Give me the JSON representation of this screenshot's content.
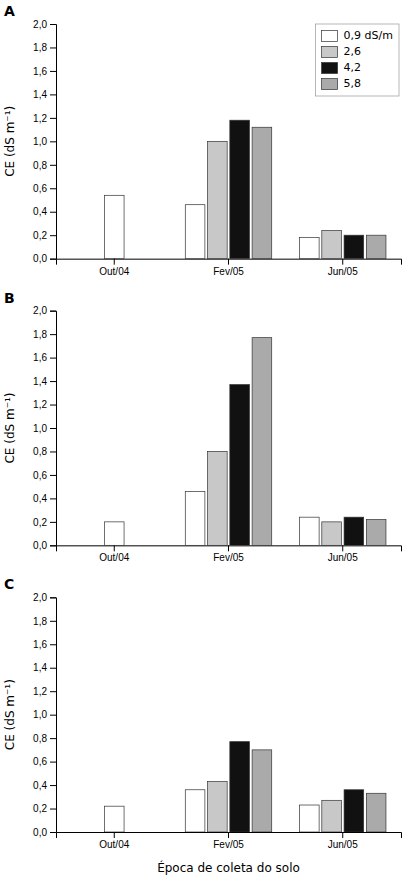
{
  "chart_data": [
    {
      "type": "bar",
      "title": "A",
      "ylabel": "CE (dS m⁻¹)",
      "categories": [
        "Out/04",
        "Fev/05",
        "Jun/05"
      ],
      "series": [
        {
          "name": "0,9 dS/m",
          "color": "#ffffff",
          "values": [
            0.54,
            0.46,
            0.18
          ]
        },
        {
          "name": "2,6",
          "color": "#c8c8c8",
          "values": [
            null,
            1.0,
            0.24
          ]
        },
        {
          "name": "4,2",
          "color": "#111111",
          "values": [
            null,
            1.18,
            0.2
          ]
        },
        {
          "name": "5,8",
          "color": "#aaaaaa",
          "values": [
            null,
            1.12,
            0.2
          ]
        }
      ],
      "ylim": [
        0.0,
        2.0
      ],
      "yticks": [
        {
          "value": 0.0,
          "label": "0,0"
        },
        {
          "value": 0.2,
          "label": "0,2"
        },
        {
          "value": 0.4,
          "label": "0,4"
        },
        {
          "value": 0.6,
          "label": "0,6"
        },
        {
          "value": 0.8,
          "label": "0,8"
        },
        {
          "value": 1.0,
          "label": "1,0"
        },
        {
          "value": 1.2,
          "label": "1,2"
        },
        {
          "value": 1.4,
          "label": "1,4"
        },
        {
          "value": 1.6,
          "label": "1,6"
        },
        {
          "value": 1.8,
          "label": "1,8"
        },
        {
          "value": 2.0,
          "label": "2,0"
        }
      ],
      "legend": "upper right"
    },
    {
      "type": "bar",
      "title": "B",
      "ylabel": "CE (dS m⁻¹)",
      "categories": [
        "Out/04",
        "Fev/05",
        "Jun/05"
      ],
      "series": [
        {
          "color": "#ffffff",
          "values": [
            0.2,
            0.46,
            0.24
          ]
        },
        {
          "color": "#c8c8c8",
          "values": [
            null,
            0.8,
            0.2
          ]
        },
        {
          "color": "#111111",
          "values": [
            null,
            1.37,
            0.24
          ]
        },
        {
          "color": "#aaaaaa",
          "values": [
            null,
            1.77,
            0.22
          ]
        }
      ],
      "ylim": [
        0.0,
        2.0
      ],
      "yticks": [
        {
          "value": 0.0,
          "label": "0,0"
        },
        {
          "value": 0.2,
          "label": "0,2"
        },
        {
          "value": 0.4,
          "label": "0,4"
        },
        {
          "value": 0.6,
          "label": "0,6"
        },
        {
          "value": 0.8,
          "label": "0,8"
        },
        {
          "value": 1.0,
          "label": "1,0"
        },
        {
          "value": 1.2,
          "label": "1,2"
        },
        {
          "value": 1.4,
          "label": "1,4"
        },
        {
          "value": 1.6,
          "label": "1,6"
        },
        {
          "value": 1.8,
          "label": "1,8"
        },
        {
          "value": 2.0,
          "label": "2,0"
        }
      ]
    },
    {
      "type": "bar",
      "title": "C",
      "ylabel": "CE (dS m⁻¹)",
      "xlabel": "Época de coleta do solo",
      "categories": [
        "Out/04",
        "Fev/05",
        "Jun/05"
      ],
      "series": [
        {
          "color": "#ffffff",
          "values": [
            0.22,
            0.36,
            0.23
          ]
        },
        {
          "color": "#c8c8c8",
          "values": [
            null,
            0.43,
            0.27
          ]
        },
        {
          "color": "#111111",
          "values": [
            null,
            0.77,
            0.36
          ]
        },
        {
          "color": "#aaaaaa",
          "values": [
            null,
            0.7,
            0.33
          ]
        }
      ],
      "ylim": [
        0.0,
        2.0
      ],
      "yticks": [
        {
          "value": 0.0,
          "label": "0,0"
        },
        {
          "value": 0.2,
          "label": "0,2"
        },
        {
          "value": 0.4,
          "label": "0,4"
        },
        {
          "value": 0.6,
          "label": "0,6"
        },
        {
          "value": 0.8,
          "label": "0,8"
        },
        {
          "value": 1.0,
          "label": "1,0"
        },
        {
          "value": 1.2,
          "label": "1,2"
        },
        {
          "value": 1.4,
          "label": "1,4"
        },
        {
          "value": 1.6,
          "label": "1,6"
        },
        {
          "value": 1.8,
          "label": "1,8"
        },
        {
          "value": 2.0,
          "label": "2,0"
        }
      ]
    }
  ]
}
